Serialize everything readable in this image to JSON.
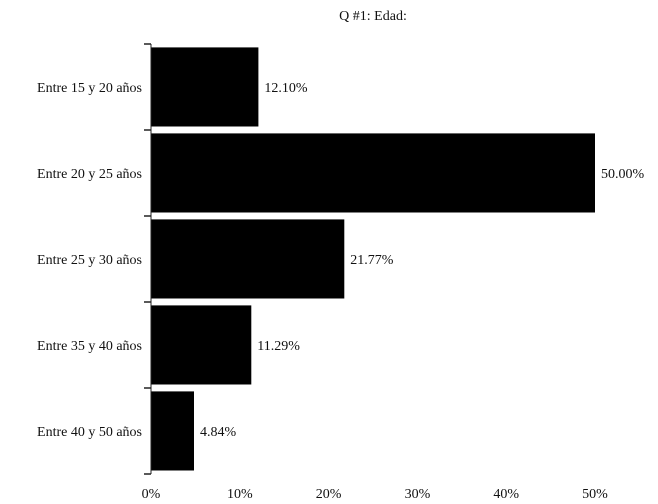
{
  "chart_data": {
    "type": "bar",
    "orientation": "horizontal",
    "title": "Q #1: Edad:",
    "categories": [
      "Entre 15 y 20 años",
      "Entre 20 y 25 años",
      "Entre 25 y 30 años",
      "Entre 35 y 40 años",
      "Entre 40 y 50 años"
    ],
    "values": [
      12.1,
      50.0,
      21.77,
      11.29,
      4.84
    ],
    "value_labels": [
      "12.10%",
      "50.00%",
      "21.77%",
      "11.29%",
      "4.84%"
    ],
    "x_ticks": [
      0,
      10,
      20,
      30,
      40,
      50
    ],
    "x_tick_labels": [
      "0%",
      "10%",
      "20%",
      "30%",
      "40%",
      "50%"
    ],
    "xlim": [
      0,
      50
    ],
    "xlabel": "",
    "ylabel": "",
    "grid": false,
    "bar_color": "#000000"
  }
}
